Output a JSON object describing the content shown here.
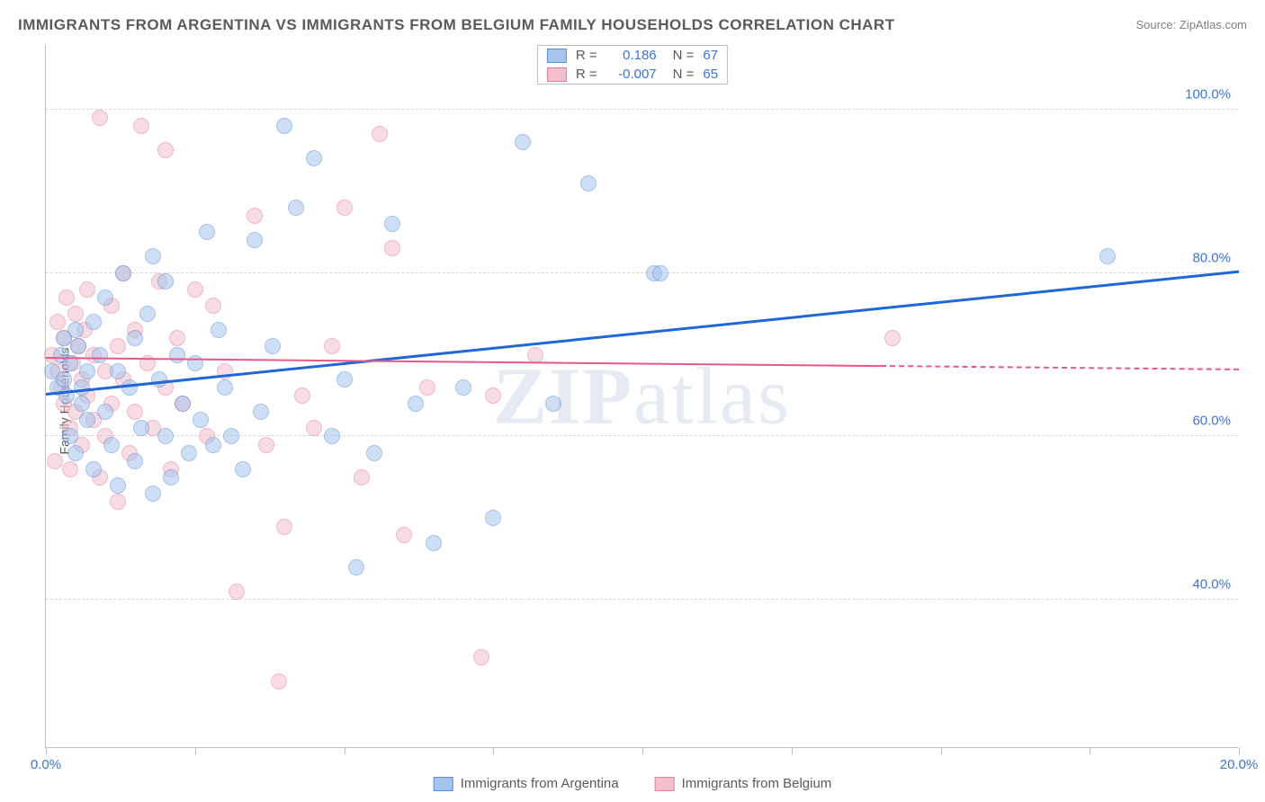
{
  "title": "IMMIGRANTS FROM ARGENTINA VS IMMIGRANTS FROM BELGIUM FAMILY HOUSEHOLDS CORRELATION CHART",
  "source": "Source: ZipAtlas.com",
  "ylabel": "Family Households",
  "watermark": "ZIPatlas",
  "chart": {
    "type": "scatter",
    "xlim": [
      0,
      20
    ],
    "ylim": [
      22,
      108
    ],
    "xticks": [
      0,
      2.5,
      5,
      7.5,
      10,
      12.5,
      15,
      17.5,
      20
    ],
    "xtick_labels": {
      "0": "0.0%",
      "20": "20.0%"
    },
    "yticks": [
      40,
      60,
      80,
      100
    ],
    "ytick_labels": [
      "40.0%",
      "60.0%",
      "80.0%",
      "100.0%"
    ],
    "background_color": "#ffffff",
    "grid_color": "#d8d8d8",
    "axis_color": "#bfbfbf",
    "marker_radius": 9,
    "marker_opacity": 0.55,
    "series": [
      {
        "name": "Immigrants from Argentina",
        "color_fill": "#a7c4ec",
        "color_stroke": "#5a8fd6",
        "R": "0.186",
        "N": "67",
        "trend": {
          "x1": 0,
          "y1": 65,
          "x2": 20,
          "y2": 80,
          "color": "#1f66d6",
          "width": 3
        },
        "points": [
          [
            0.1,
            68
          ],
          [
            0.2,
            66
          ],
          [
            0.25,
            70
          ],
          [
            0.3,
            72
          ],
          [
            0.3,
            67
          ],
          [
            0.35,
            65
          ],
          [
            0.4,
            69
          ],
          [
            0.4,
            60
          ],
          [
            0.5,
            58
          ],
          [
            0.5,
            73
          ],
          [
            0.55,
            71
          ],
          [
            0.6,
            66
          ],
          [
            0.6,
            64
          ],
          [
            0.7,
            62
          ],
          [
            0.7,
            68
          ],
          [
            0.8,
            74
          ],
          [
            0.8,
            56
          ],
          [
            0.9,
            70
          ],
          [
            1.0,
            77
          ],
          [
            1.0,
            63
          ],
          [
            1.1,
            59
          ],
          [
            1.2,
            68
          ],
          [
            1.2,
            54
          ],
          [
            1.3,
            80
          ],
          [
            1.4,
            66
          ],
          [
            1.5,
            72
          ],
          [
            1.5,
            57
          ],
          [
            1.6,
            61
          ],
          [
            1.7,
            75
          ],
          [
            1.8,
            82
          ],
          [
            1.8,
            53
          ],
          [
            1.9,
            67
          ],
          [
            2.0,
            79
          ],
          [
            2.0,
            60
          ],
          [
            2.1,
            55
          ],
          [
            2.2,
            70
          ],
          [
            2.3,
            64
          ],
          [
            2.4,
            58
          ],
          [
            2.5,
            69
          ],
          [
            2.6,
            62
          ],
          [
            2.7,
            85
          ],
          [
            2.8,
            59
          ],
          [
            2.9,
            73
          ],
          [
            3.0,
            66
          ],
          [
            3.1,
            60
          ],
          [
            3.3,
            56
          ],
          [
            3.5,
            84
          ],
          [
            3.6,
            63
          ],
          [
            3.8,
            71
          ],
          [
            4.0,
            98
          ],
          [
            4.2,
            88
          ],
          [
            4.5,
            94
          ],
          [
            4.8,
            60
          ],
          [
            5.0,
            67
          ],
          [
            5.2,
            44
          ],
          [
            5.5,
            58
          ],
          [
            5.8,
            86
          ],
          [
            6.2,
            64
          ],
          [
            6.5,
            47
          ],
          [
            7.0,
            66
          ],
          [
            7.5,
            50
          ],
          [
            8.0,
            96
          ],
          [
            8.5,
            64
          ],
          [
            9.1,
            91
          ],
          [
            10.2,
            80
          ],
          [
            10.3,
            80
          ],
          [
            17.8,
            82
          ]
        ]
      },
      {
        "name": "Immigrants from Belgium",
        "color_fill": "#f4c0cd",
        "color_stroke": "#e77ba0",
        "R": "-0.007",
        "N": "65",
        "trend": {
          "x1": 0,
          "y1": 69.5,
          "x2": 14,
          "y2": 68.5,
          "color": "#e65a8a",
          "width": 2.5,
          "dash_from": 14,
          "dash_to": 20
        },
        "points": [
          [
            0.1,
            70
          ],
          [
            0.15,
            57
          ],
          [
            0.2,
            74
          ],
          [
            0.2,
            68
          ],
          [
            0.25,
            66
          ],
          [
            0.3,
            72
          ],
          [
            0.3,
            64
          ],
          [
            0.35,
            77
          ],
          [
            0.4,
            61
          ],
          [
            0.4,
            56
          ],
          [
            0.45,
            69
          ],
          [
            0.5,
            75
          ],
          [
            0.5,
            63
          ],
          [
            0.55,
            71
          ],
          [
            0.6,
            67
          ],
          [
            0.6,
            59
          ],
          [
            0.65,
            73
          ],
          [
            0.7,
            65
          ],
          [
            0.7,
            78
          ],
          [
            0.8,
            62
          ],
          [
            0.8,
            70
          ],
          [
            0.9,
            55
          ],
          [
            0.9,
            99
          ],
          [
            1.0,
            68
          ],
          [
            1.0,
            60
          ],
          [
            1.1,
            76
          ],
          [
            1.1,
            64
          ],
          [
            1.2,
            71
          ],
          [
            1.2,
            52
          ],
          [
            1.3,
            80
          ],
          [
            1.3,
            67
          ],
          [
            1.4,
            58
          ],
          [
            1.5,
            73
          ],
          [
            1.5,
            63
          ],
          [
            1.6,
            98
          ],
          [
            1.7,
            69
          ],
          [
            1.8,
            61
          ],
          [
            1.9,
            79
          ],
          [
            2.0,
            66
          ],
          [
            2.0,
            95
          ],
          [
            2.1,
            56
          ],
          [
            2.2,
            72
          ],
          [
            2.3,
            64
          ],
          [
            2.5,
            78
          ],
          [
            2.7,
            60
          ],
          [
            2.8,
            76
          ],
          [
            3.0,
            68
          ],
          [
            3.2,
            41
          ],
          [
            3.5,
            87
          ],
          [
            3.7,
            59
          ],
          [
            3.9,
            30
          ],
          [
            4.0,
            49
          ],
          [
            4.3,
            65
          ],
          [
            4.5,
            61
          ],
          [
            4.8,
            71
          ],
          [
            5.0,
            88
          ],
          [
            5.3,
            55
          ],
          [
            5.6,
            97
          ],
          [
            5.8,
            83
          ],
          [
            6.0,
            48
          ],
          [
            6.4,
            66
          ],
          [
            7.3,
            33
          ],
          [
            7.5,
            65
          ],
          [
            8.2,
            70
          ],
          [
            14.2,
            72
          ]
        ]
      }
    ]
  },
  "legend_top": {
    "label_r": "R =",
    "label_n": "N ="
  },
  "legend_bottom_labels": [
    "Immigrants from Argentina",
    "Immigrants from Belgium"
  ],
  "colors": {
    "value_text": "#3a74d8",
    "label_text": "#5a5a5a"
  }
}
